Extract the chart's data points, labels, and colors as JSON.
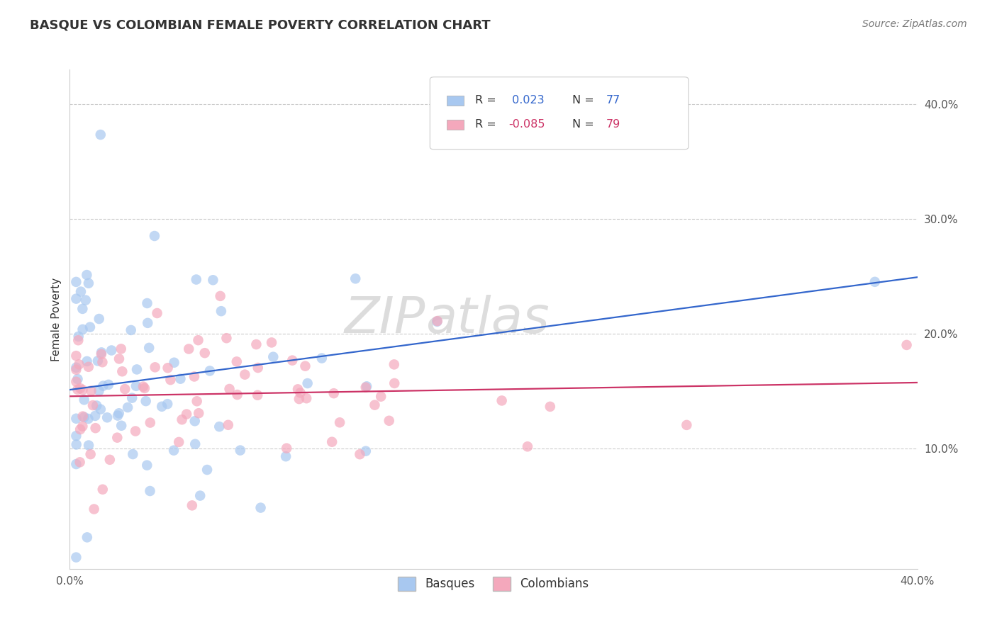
{
  "title": "BASQUE VS COLOMBIAN FEMALE POVERTY CORRELATION CHART",
  "source": "Source: ZipAtlas.com",
  "ylabel": "Female Poverty",
  "xlim": [
    0.0,
    0.4
  ],
  "ylim": [
    -0.005,
    0.43
  ],
  "basque_color": "#a8c8f0",
  "colombian_color": "#f4a8bc",
  "basque_line_color": "#3366cc",
  "colombian_line_color": "#cc3366",
  "watermark": "ZIPatlas",
  "background_color": "#ffffff",
  "grid_color": "#cccccc",
  "basque_r": 0.023,
  "colombian_r": -0.085,
  "basque_n": 77,
  "colombian_n": 79
}
